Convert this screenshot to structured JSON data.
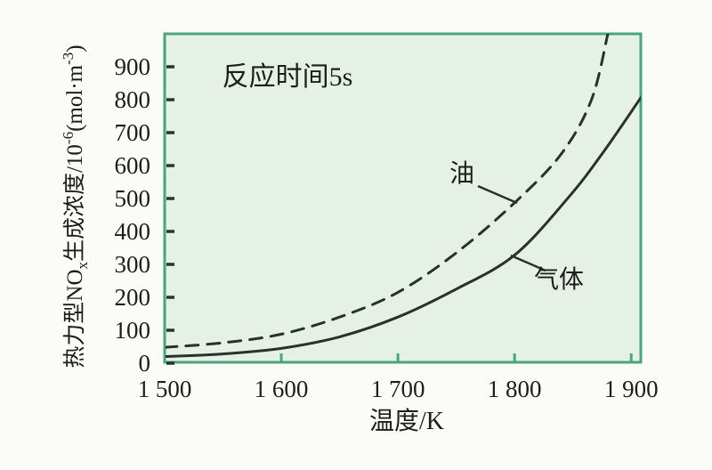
{
  "colors": {
    "page_bg": "#fbfbf7",
    "plot_bg": "#e4f1e4",
    "frame": "#46a77c",
    "curve": "#2a302c",
    "text": "#1d1d1b",
    "tick": "#24372c"
  },
  "chart_data": {
    "type": "line",
    "title": "",
    "annotation": "反应时间5s",
    "xlabel": "温度/K",
    "ylabel": "热力型NOx生成浓度/10⁻⁶(mol·m⁻³)",
    "ylabel_parts": {
      "base1": "热力型NO",
      "sub1": "x",
      "base2": "生成浓度/10",
      "sup1": "-6",
      "base3": "(mol·m",
      "sup2": "-3",
      "base4": ")"
    },
    "grid": false,
    "legend_position": "inline-curve-labels",
    "axes": {
      "x_min": 1500,
      "x_max": 1909,
      "y_min": 0,
      "y_max": 1000,
      "x_ticks": [
        1500,
        1600,
        1700,
        1800,
        1900
      ],
      "x_tick_labels": [
        "1 500",
        "1 600",
        "1 700",
        "1 800",
        "1 900"
      ],
      "y_ticks": [
        0,
        100,
        200,
        300,
        400,
        500,
        600,
        700,
        800,
        900
      ],
      "y_tick_labels": [
        "0",
        "100",
        "200",
        "300",
        "400",
        "500",
        "600",
        "700",
        "800",
        "900"
      ]
    },
    "series": [
      {
        "name": "油",
        "style": "dashed",
        "points": [
          [
            1500,
            48
          ],
          [
            1550,
            62
          ],
          [
            1600,
            88
          ],
          [
            1650,
            140
          ],
          [
            1700,
            215
          ],
          [
            1750,
            335
          ],
          [
            1800,
            487
          ],
          [
            1840,
            635
          ],
          [
            1866,
            800
          ],
          [
            1880,
            1000
          ]
        ]
      },
      {
        "name": "气体",
        "style": "solid",
        "points": [
          [
            1500,
            20
          ],
          [
            1550,
            28
          ],
          [
            1600,
            45
          ],
          [
            1650,
            80
          ],
          [
            1700,
            140
          ],
          [
            1750,
            225
          ],
          [
            1800,
            328
          ],
          [
            1845,
            498
          ],
          [
            1875,
            635
          ],
          [
            1909,
            810
          ]
        ]
      }
    ]
  }
}
